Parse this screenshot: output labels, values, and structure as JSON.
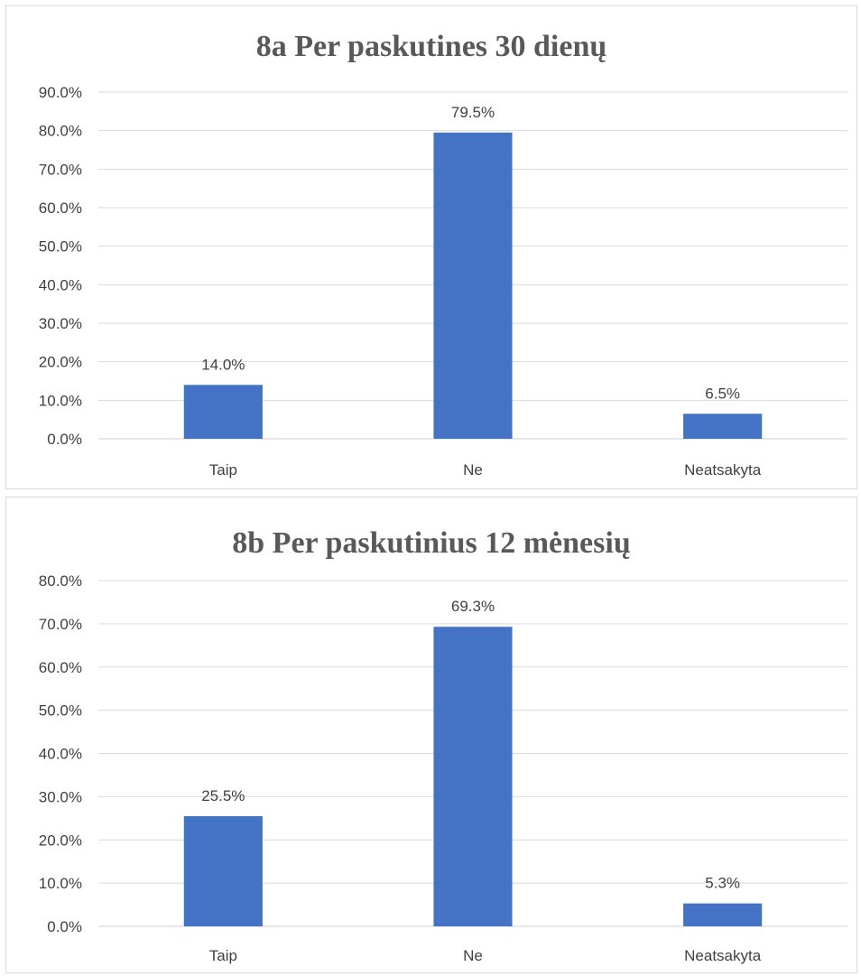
{
  "chart_data": [
    {
      "type": "bar",
      "title": "8a Per paskutines 30 dienų",
      "categories": [
        "Taip",
        "Ne",
        "Neatsakyta"
      ],
      "values": [
        14.0,
        79.5,
        6.5
      ],
      "data_labels": [
        "14.0%",
        "79.5%",
        "6.5%"
      ],
      "ylim": [
        0,
        90
      ],
      "yticks": [
        "0.0%",
        "10.0%",
        "20.0%",
        "30.0%",
        "40.0%",
        "50.0%",
        "60.0%",
        "70.0%",
        "80.0%",
        "90.0%"
      ],
      "grid": true,
      "bar_color": "#4472c4"
    },
    {
      "type": "bar",
      "title": "8b Per paskutinius 12 mėnesių",
      "categories": [
        "Taip",
        "Ne",
        "Neatsakyta"
      ],
      "values": [
        25.5,
        69.3,
        5.3
      ],
      "data_labels": [
        "25.5%",
        "69.3%",
        "5.3%"
      ],
      "ylim": [
        0,
        80
      ],
      "yticks": [
        "0.0%",
        "10.0%",
        "20.0%",
        "30.0%",
        "40.0%",
        "50.0%",
        "60.0%",
        "70.0%",
        "80.0%"
      ],
      "grid": true,
      "bar_color": "#4472c4"
    }
  ]
}
